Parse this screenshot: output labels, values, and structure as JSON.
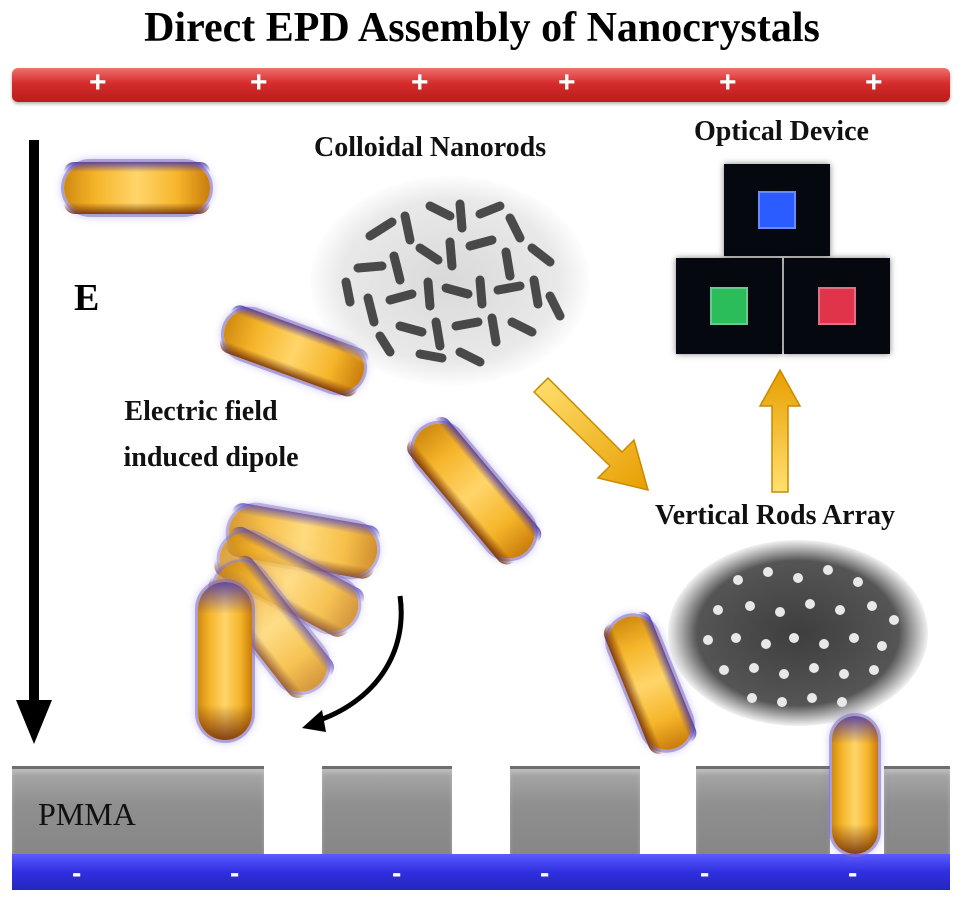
{
  "title": "Direct EPD Assembly of Nanocrystals",
  "labels": {
    "colloidal": "Colloidal Nanorods",
    "optical": "Optical Device",
    "vertical": "Vertical Rods Array",
    "dipole_line1": "Electric field",
    "dipole_line2": "induced dipole",
    "field": "E",
    "pmma": "PMMA"
  },
  "electrode_top": {
    "sign": "+",
    "count": 6,
    "color": "#d62c2c"
  },
  "electrode_bottom": {
    "sign": "-",
    "count": 6,
    "color": "#2f2fe0"
  },
  "device_colors": {
    "blue": "#2a5cff",
    "green": "#2bbd5a",
    "red": "#e0344a"
  },
  "rod_color": "#f5b52a",
  "arrow_color": "#f5b800"
}
